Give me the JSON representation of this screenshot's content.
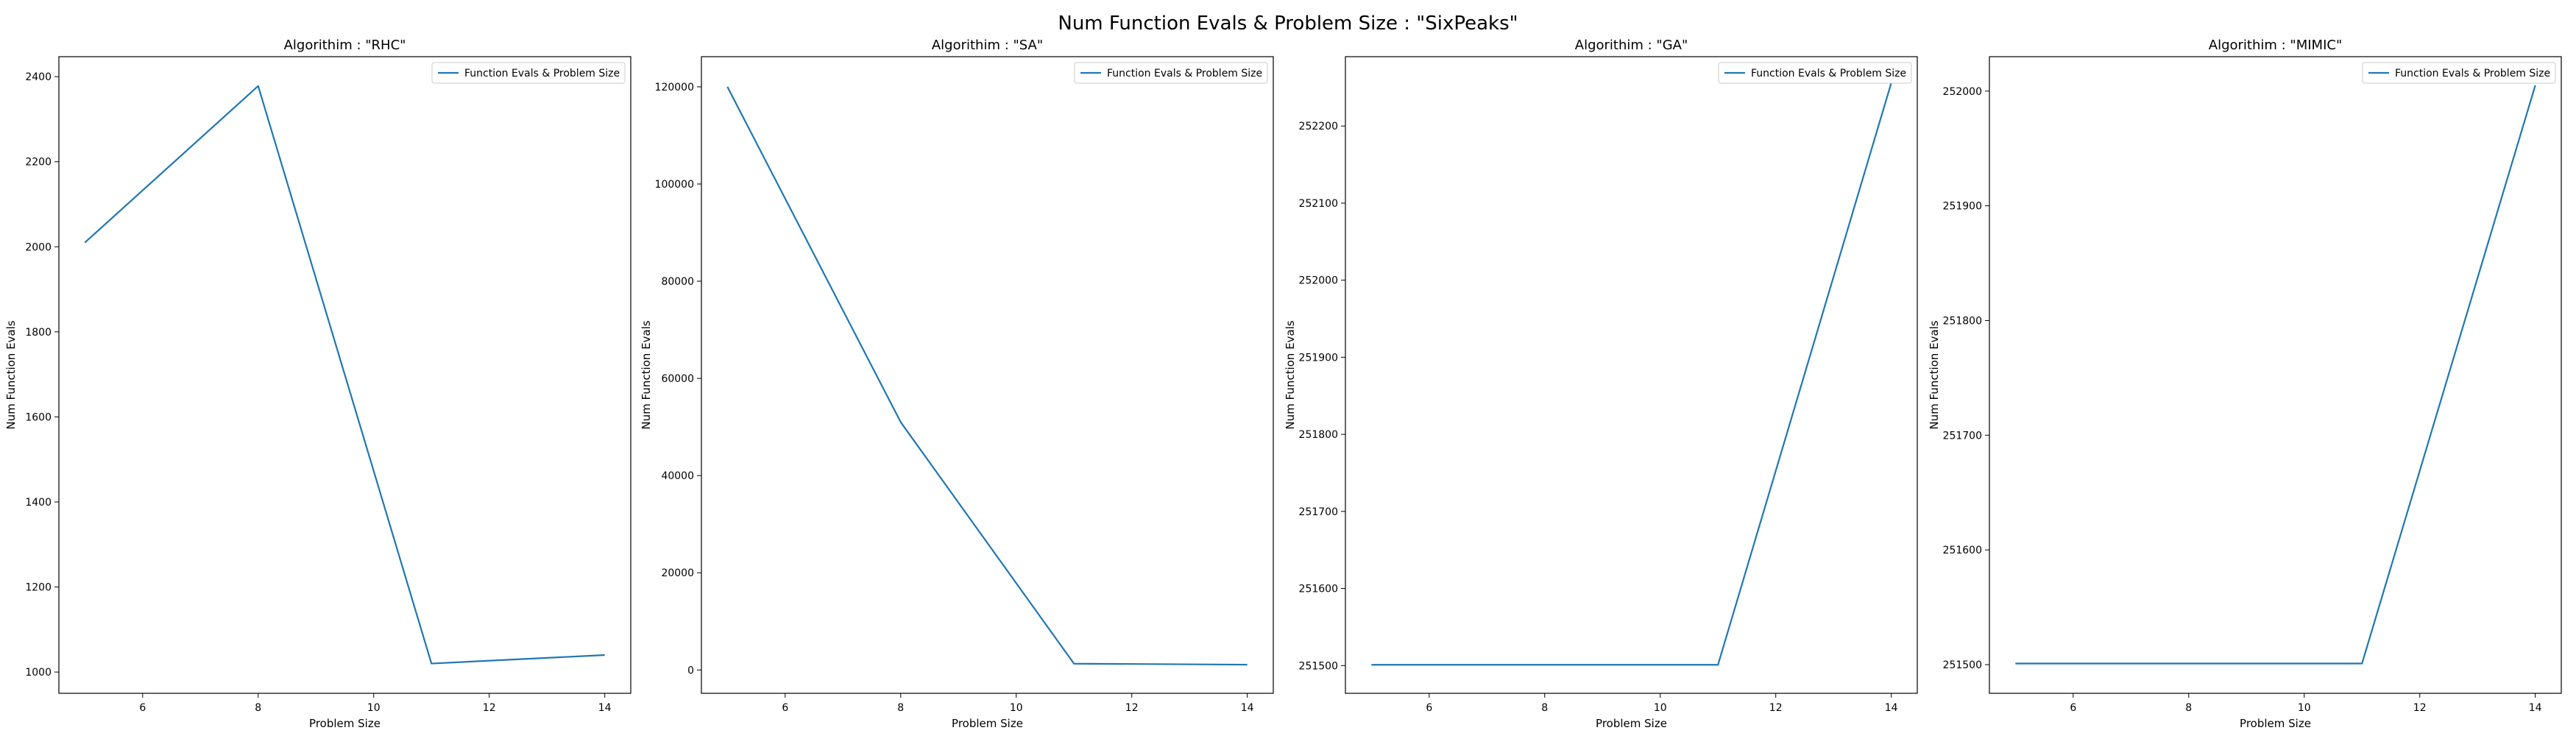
{
  "figure_title": "Num Function Evals & Problem Size : \"SixPeaks\"",
  "colors": {
    "series": "#1f77b4",
    "axes": "#000000",
    "background": "#ffffff",
    "legend_border": "#cccccc"
  },
  "chart_data": [
    {
      "type": "line",
      "title": "Algorithim : \"RHC\"",
      "xlabel": "Problem Size",
      "ylabel": "Num Function Evals",
      "legend": "top-right",
      "grid": false,
      "xlim": [
        4.55,
        14.45
      ],
      "ylim": [
        950,
        2447
      ],
      "xticks": [
        6,
        8,
        10,
        12,
        14
      ],
      "yticks": [
        1000,
        1200,
        1400,
        1600,
        1800,
        2000,
        2200,
        2400
      ],
      "series": [
        {
          "name": "Function Evals & Problem Size",
          "x": [
            5,
            8,
            11,
            14
          ],
          "y": [
            2010,
            2378,
            1020,
            1040
          ]
        }
      ]
    },
    {
      "type": "line",
      "title": "Algorithim : \"SA\"",
      "xlabel": "Problem Size",
      "ylabel": "Num Function Evals",
      "legend": "top-right",
      "grid": false,
      "xlim": [
        4.55,
        14.45
      ],
      "ylim": [
        -4800,
        126200
      ],
      "xticks": [
        6,
        8,
        10,
        12,
        14
      ],
      "yticks": [
        0,
        20000,
        40000,
        60000,
        80000,
        100000,
        120000
      ],
      "series": [
        {
          "name": "Function Evals & Problem Size",
          "x": [
            5,
            8,
            11,
            14
          ],
          "y": [
            120000,
            51000,
            1300,
            1100
          ]
        }
      ]
    },
    {
      "type": "line",
      "title": "Algorithim : \"GA\"",
      "xlabel": "Problem Size",
      "ylabel": "Num Function Evals",
      "legend": "top-right",
      "grid": false,
      "xlim": [
        4.55,
        14.45
      ],
      "ylim": [
        251464,
        252290
      ],
      "xticks": [
        6,
        8,
        10,
        12,
        14
      ],
      "yticks": [
        251500,
        251600,
        251700,
        251800,
        251900,
        252000,
        252100,
        252200
      ],
      "series": [
        {
          "name": "Function Evals & Problem Size",
          "x": [
            5,
            8,
            11,
            14
          ],
          "y": [
            251501,
            251501,
            251501,
            252256
          ]
        }
      ]
    },
    {
      "type": "line",
      "title": "Algorithim : \"MIMIC\"",
      "xlabel": "Problem Size",
      "ylabel": "Num Function Evals",
      "legend": "top-right",
      "grid": false,
      "xlim": [
        4.55,
        14.45
      ],
      "ylim": [
        251475,
        252030
      ],
      "xticks": [
        6,
        8,
        10,
        12,
        14
      ],
      "yticks": [
        251500,
        251600,
        251700,
        251800,
        251900,
        252000
      ],
      "series": [
        {
          "name": "Function Evals & Problem Size",
          "x": [
            5,
            8,
            11,
            14
          ],
          "y": [
            251501,
            251501,
            251501,
            252005
          ]
        }
      ]
    }
  ]
}
